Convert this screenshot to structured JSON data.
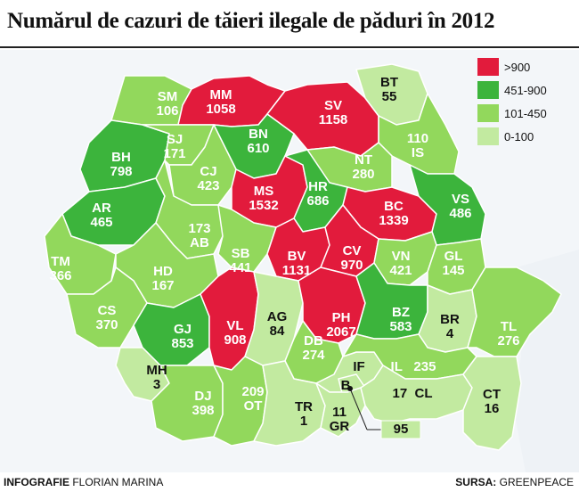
{
  "title": "Numărul de cazuri de tăieri ilegale de păduri în 2012",
  "colors": {
    "very_high": "#e21b3c",
    "high": "#3cb43c",
    "medium": "#92d85c",
    "low": "#c2eaa0",
    "sea": "#f3f6f9",
    "outside": "#ffffff"
  },
  "legend": [
    {
      "label": ">900",
      "color": "#e21b3c"
    },
    {
      "label": "451-900",
      "color": "#3cb43c"
    },
    {
      "label": "101-450",
      "color": "#92d85c"
    },
    {
      "label": "0-100",
      "color": "#c2eaa0"
    }
  ],
  "counties": [
    {
      "code": "SM",
      "value": "106",
      "level": "medium"
    },
    {
      "code": "MM",
      "value": "1058",
      "level": "very_high"
    },
    {
      "code": "SV",
      "value": "1158",
      "level": "very_high"
    },
    {
      "code": "BT",
      "value": "55",
      "level": "low"
    },
    {
      "code": "BH",
      "value": "798",
      "level": "high"
    },
    {
      "code": "SJ",
      "value": "171",
      "level": "medium"
    },
    {
      "code": "BN",
      "value": "610",
      "level": "high"
    },
    {
      "code": "IS",
      "value": "110",
      "level": "medium"
    },
    {
      "code": "NT",
      "value": "280",
      "level": "medium"
    },
    {
      "code": "CJ",
      "value": "423",
      "level": "medium"
    },
    {
      "code": "MS",
      "value": "1532",
      "level": "very_high"
    },
    {
      "code": "HR",
      "value": "686",
      "level": "high"
    },
    {
      "code": "BC",
      "value": "1339",
      "level": "very_high"
    },
    {
      "code": "VS",
      "value": "486",
      "level": "high"
    },
    {
      "code": "AR",
      "value": "465",
      "level": "high"
    },
    {
      "code": "AB",
      "value": "173",
      "level": "medium"
    },
    {
      "code": "SB",
      "value": "441",
      "level": "medium"
    },
    {
      "code": "BV",
      "value": "1131",
      "level": "very_high"
    },
    {
      "code": "CV",
      "value": "970",
      "level": "very_high"
    },
    {
      "code": "VN",
      "value": "421",
      "level": "medium"
    },
    {
      "code": "GL",
      "value": "145",
      "level": "medium"
    },
    {
      "code": "TM",
      "value": "366",
      "level": "medium"
    },
    {
      "code": "HD",
      "value": "167",
      "level": "medium"
    },
    {
      "code": "CS",
      "value": "370",
      "level": "medium"
    },
    {
      "code": "GJ",
      "value": "853",
      "level": "high"
    },
    {
      "code": "VL",
      "value": "908",
      "level": "very_high"
    },
    {
      "code": "AG",
      "value": "84",
      "level": "low"
    },
    {
      "code": "PH",
      "value": "2067",
      "level": "very_high"
    },
    {
      "code": "BZ",
      "value": "583",
      "level": "high"
    },
    {
      "code": "BR",
      "value": "4",
      "level": "low"
    },
    {
      "code": "TL",
      "value": "276",
      "level": "medium"
    },
    {
      "code": "DB",
      "value": "274",
      "level": "medium"
    },
    {
      "code": "MH",
      "value": "3",
      "level": "low"
    },
    {
      "code": "DJ",
      "value": "398",
      "level": "medium"
    },
    {
      "code": "OT",
      "value": "209",
      "level": "medium"
    },
    {
      "code": "TR",
      "value": "1",
      "level": "low"
    },
    {
      "code": "IF",
      "value": "",
      "level": "low"
    },
    {
      "code": "B",
      "value": "",
      "level": "low"
    },
    {
      "code": "GR",
      "value": "11",
      "level": "low"
    },
    {
      "code": "IL",
      "value": "235",
      "level": "medium"
    },
    {
      "code": "CL",
      "value": "17",
      "level": "low"
    },
    {
      "code": "CT",
      "value": "16",
      "level": "low"
    }
  ],
  "callout": {
    "value": "95"
  },
  "footer": {
    "credit_prefix": "INFOGRAFIE",
    "credit_name": "FLORIAN MARINA",
    "source_prefix": "SURSA:",
    "source_name": "GREENPEACE"
  }
}
